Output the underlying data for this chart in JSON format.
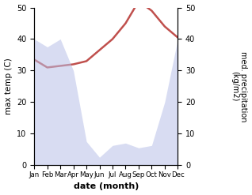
{
  "months": [
    "Jan",
    "Feb",
    "Mar",
    "Apr",
    "May",
    "Jun",
    "Jul",
    "Aug",
    "Sep",
    "Oct",
    "Nov",
    "Dec"
  ],
  "month_x": [
    0,
    1,
    2,
    3,
    4,
    5,
    6,
    7,
    8,
    9,
    10,
    11
  ],
  "temperature": [
    33.5,
    31.0,
    31.5,
    32.0,
    33.0,
    36.5,
    40.0,
    45.0,
    52.0,
    49.0,
    44.0,
    40.5
  ],
  "precipitation": [
    160,
    150,
    160,
    120,
    30,
    10,
    25,
    28,
    22,
    25,
    80,
    160
  ],
  "temp_color": "#c0504d",
  "precip_fill_color": "#b8c0e8",
  "xlabel": "date (month)",
  "ylabel_left": "max temp (C)",
  "ylabel_right": "med. precipitation\n(kg/m2)",
  "ylim_left": [
    0,
    50
  ],
  "ylim_right": [
    0,
    200
  ],
  "yticks_left": [
    0,
    10,
    20,
    30,
    40,
    50
  ],
  "yticks_right": [
    0,
    10,
    20,
    30,
    40,
    50
  ],
  "ytick_right_labels": [
    "0",
    "10",
    "20",
    "30",
    "40",
    "50"
  ],
  "ytick_right_vals": [
    0,
    40,
    80,
    120,
    160,
    200
  ],
  "background_color": "#ffffff"
}
